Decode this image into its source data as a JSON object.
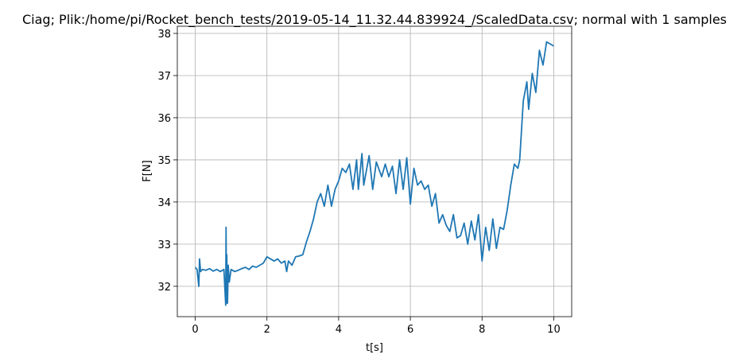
{
  "chart_data": {
    "type": "line",
    "title": "Ciag; Plik:/home/pi/Rocket_bench_tests/2019-05-14_11.32.44.839924_/ScaledData.csv; normal with 1 samples",
    "x_label": "t[s]",
    "y_label": "F[N]",
    "x": [
      0,
      0.05,
      0.1,
      0.12,
      0.15,
      0.2,
      0.3,
      0.4,
      0.5,
      0.6,
      0.7,
      0.8,
      0.85,
      0.86,
      0.87,
      0.88,
      0.9,
      0.92,
      0.95,
      1.0,
      1.1,
      1.2,
      1.3,
      1.4,
      1.5,
      1.6,
      1.7,
      1.8,
      1.9,
      2.0,
      2.1,
      2.2,
      2.3,
      2.4,
      2.5,
      2.55,
      2.6,
      2.7,
      2.8,
      2.9,
      3.0,
      3.1,
      3.2,
      3.3,
      3.4,
      3.5,
      3.6,
      3.7,
      3.8,
      3.9,
      4.0,
      4.1,
      4.2,
      4.3,
      4.4,
      4.5,
      4.55,
      4.65,
      4.7,
      4.85,
      4.95,
      5.05,
      5.2,
      5.3,
      5.4,
      5.5,
      5.6,
      5.7,
      5.8,
      5.9,
      6.0,
      6.1,
      6.2,
      6.3,
      6.4,
      6.5,
      6.6,
      6.7,
      6.8,
      6.9,
      7.0,
      7.1,
      7.2,
      7.3,
      7.4,
      7.5,
      7.6,
      7.7,
      7.8,
      7.9,
      8.0,
      8.1,
      8.2,
      8.3,
      8.4,
      8.5,
      8.6,
      8.7,
      8.8,
      8.9,
      9.0,
      9.05,
      9.15,
      9.25,
      9.3,
      9.4,
      9.5,
      9.6,
      9.7,
      9.8,
      9.9,
      10.0
    ],
    "values": [
      32.45,
      32.4,
      32.0,
      32.65,
      32.35,
      32.4,
      32.38,
      32.42,
      32.36,
      32.4,
      32.35,
      32.4,
      31.55,
      33.4,
      31.6,
      32.75,
      31.6,
      32.5,
      32.1,
      32.4,
      32.35,
      32.38,
      32.42,
      32.45,
      32.4,
      32.48,
      32.45,
      32.5,
      32.55,
      32.7,
      32.65,
      32.6,
      32.65,
      32.55,
      32.6,
      32.35,
      32.6,
      32.5,
      32.7,
      32.72,
      32.75,
      33.05,
      33.3,
      33.6,
      34.0,
      34.2,
      33.9,
      34.4,
      33.9,
      34.3,
      34.5,
      34.8,
      34.7,
      34.9,
      34.3,
      35.0,
      34.3,
      35.15,
      34.4,
      35.1,
      34.3,
      34.95,
      34.6,
      34.9,
      34.6,
      34.85,
      34.2,
      35.0,
      34.3,
      35.05,
      33.95,
      34.8,
      34.4,
      34.5,
      34.3,
      34.4,
      33.9,
      34.2,
      33.5,
      33.7,
      33.45,
      33.3,
      33.7,
      33.15,
      33.2,
      33.5,
      33.0,
      33.55,
      33.1,
      33.7,
      32.6,
      33.4,
      32.85,
      33.6,
      32.9,
      33.4,
      33.35,
      33.8,
      34.4,
      34.9,
      34.8,
      35.0,
      36.4,
      36.85,
      36.2,
      37.05,
      36.6,
      37.6,
      37.25,
      37.8,
      37.75,
      37.7
    ],
    "color": "#1f77b4",
    "xlim": [
      -0.5,
      10.5
    ],
    "xticks": [
      0,
      2,
      4,
      6,
      8,
      10
    ],
    "ylim": [
      31.28,
      38.17
    ],
    "yticks": [
      32,
      33,
      34,
      35,
      36,
      37,
      38
    ],
    "grid": true
  }
}
